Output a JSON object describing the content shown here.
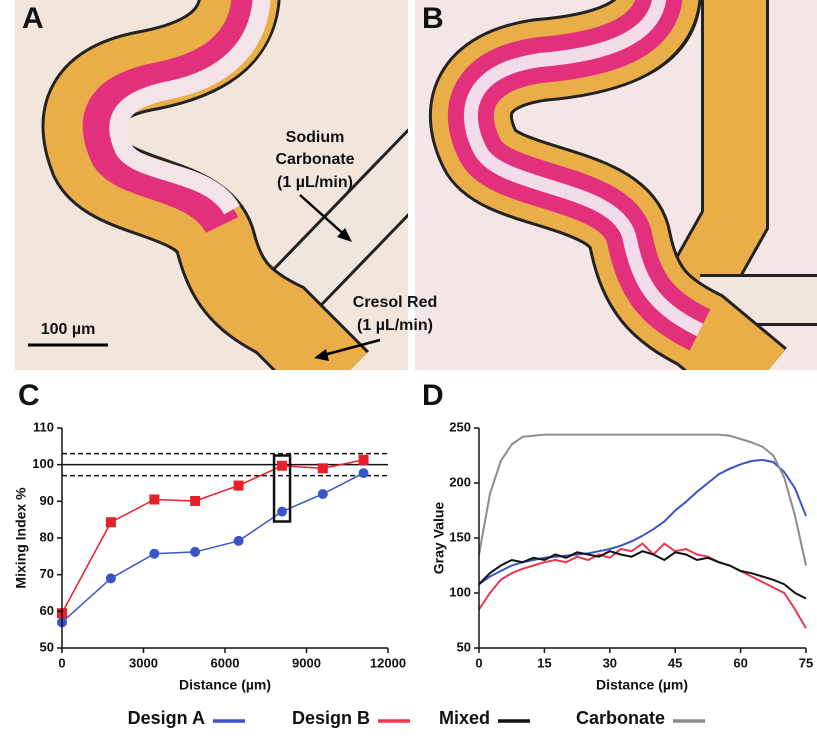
{
  "panel_labels": [
    "A",
    "B",
    "C",
    "D"
  ],
  "annotations": [
    {
      "lines": [
        "Sodium",
        "Carbonate",
        "(1 µL/min)"
      ]
    },
    {
      "lines": [
        "Cresol Red",
        "(1 µL/min)"
      ]
    }
  ],
  "scale_bar": "100 µm",
  "chart_data": [
    {
      "type": "line",
      "x_label": "Distance (µm)",
      "y_label": "Mixing Index %",
      "x": [
        0,
        1800,
        3400,
        4900,
        6500,
        8100,
        9600,
        11100
      ],
      "xlim": [
        0,
        12000
      ],
      "xticks": [
        0,
        3000,
        6000,
        9000,
        12000
      ],
      "ylim": [
        50,
        110
      ],
      "yticks": [
        50,
        60,
        70,
        80,
        90,
        100,
        110
      ],
      "series": [
        {
          "name": "Design A",
          "color": "#3a55c6",
          "marker": "circle",
          "values": [
            57,
            69,
            75.7,
            76.2,
            79.2,
            87.2,
            92,
            97.7
          ]
        },
        {
          "name": "Design B",
          "color": "#e8202a",
          "marker": "square",
          "values": [
            59.5,
            84.3,
            90.5,
            90.1,
            94.3,
            99.7,
            99,
            101.3
          ]
        }
      ],
      "reference_lines": [
        {
          "value": 100,
          "style": "solid"
        },
        {
          "value": 97,
          "style": "dashed"
        },
        {
          "value": 103,
          "style": "dashed"
        }
      ],
      "highlight": {
        "x": 8100,
        "ylim": [
          84.5,
          102.5
        ]
      }
    },
    {
      "type": "line",
      "x_label": "Distance (µm)",
      "y_label": "Gray Value",
      "x": [
        0,
        2.5,
        5,
        7.5,
        10,
        12.5,
        15,
        17.5,
        20,
        22.5,
        25,
        27.5,
        30,
        32.5,
        35,
        37.5,
        40,
        42.5,
        45,
        47.5,
        50,
        52.5,
        55,
        57.5,
        60,
        62.5,
        65,
        67.5,
        70,
        72.5,
        75
      ],
      "xlim": [
        0,
        75
      ],
      "xticks": [
        0,
        15,
        30,
        45,
        60,
        75
      ],
      "ylim": [
        50,
        250
      ],
      "yticks": [
        50,
        100,
        150,
        200,
        250
      ],
      "series": [
        {
          "name": "Design A",
          "color": "#3a55c6",
          "values": [
            108,
            115,
            120,
            125,
            128,
            130,
            132,
            133,
            134,
            135,
            136,
            138,
            140,
            143,
            147,
            152,
            158,
            165,
            175,
            183,
            192,
            200,
            208,
            213,
            217,
            220,
            221,
            219,
            210,
            195,
            170
          ]
        },
        {
          "name": "Design B",
          "color": "#ee3552",
          "values": [
            85,
            100,
            112,
            118,
            122,
            125,
            128,
            130,
            128,
            133,
            130,
            135,
            132,
            140,
            138,
            145,
            135,
            145,
            138,
            140,
            135,
            133,
            128,
            125,
            120,
            115,
            110,
            105,
            100,
            85,
            68
          ]
        },
        {
          "name": "Mixed",
          "color": "#111111",
          "values": [
            108,
            118,
            125,
            130,
            128,
            132,
            130,
            135,
            132,
            137,
            135,
            133,
            138,
            135,
            133,
            138,
            135,
            130,
            137,
            135,
            130,
            132,
            128,
            125,
            120,
            118,
            115,
            112,
            108,
            100,
            95
          ]
        },
        {
          "name": "Carbonate",
          "color": "#8c8c8c",
          "values": [
            135,
            190,
            220,
            235,
            242,
            243,
            244,
            244,
            244,
            244,
            244,
            244,
            244,
            244,
            244,
            244,
            244,
            244,
            244,
            244,
            244,
            244,
            244,
            243,
            240,
            237,
            233,
            225,
            205,
            170,
            125
          ]
        }
      ]
    }
  ]
}
